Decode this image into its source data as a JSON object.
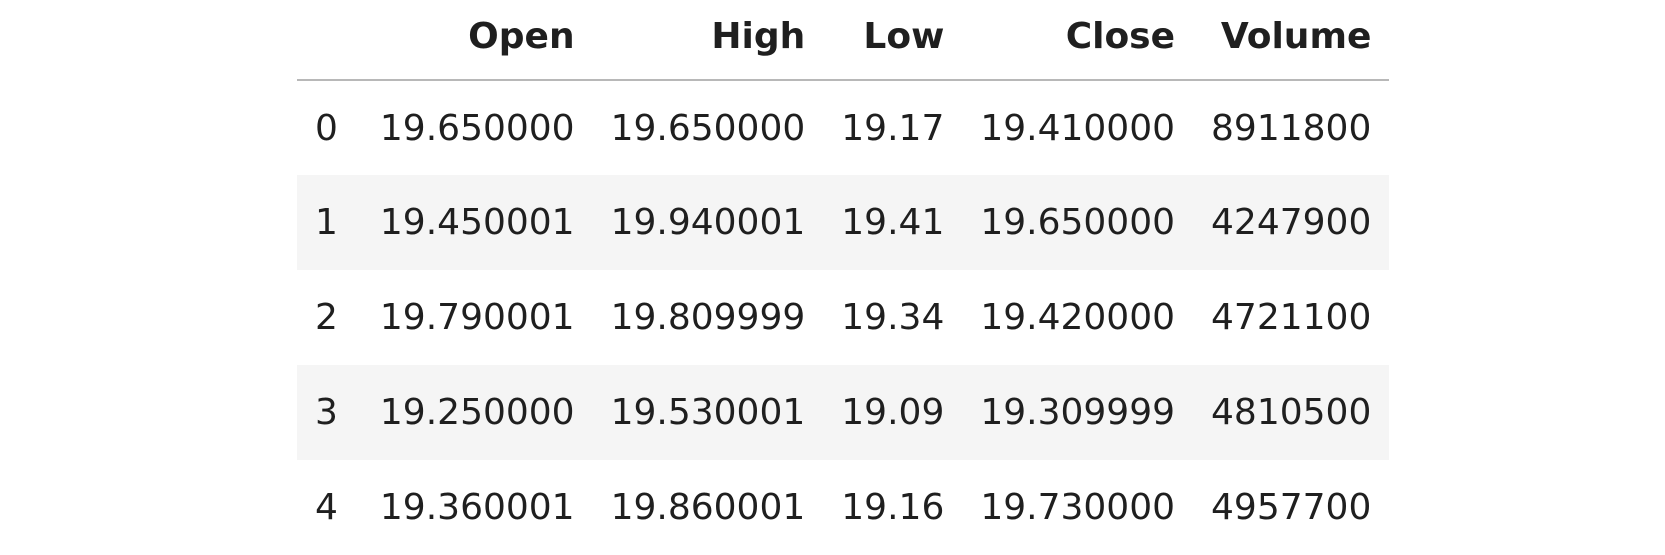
{
  "table": {
    "index_header": "",
    "columns": [
      "Open",
      "High",
      "Low",
      "Close",
      "Volume"
    ],
    "rows": [
      {
        "index": "0",
        "values": [
          "19.650000",
          "19.650000",
          "19.17",
          "19.410000",
          "8911800"
        ]
      },
      {
        "index": "1",
        "values": [
          "19.450001",
          "19.940001",
          "19.41",
          "19.650000",
          "4247900"
        ]
      },
      {
        "index": "2",
        "values": [
          "19.790001",
          "19.809999",
          "19.34",
          "19.420000",
          "4721100"
        ]
      },
      {
        "index": "3",
        "values": [
          "19.250000",
          "19.530001",
          "19.09",
          "19.309999",
          "4810500"
        ]
      },
      {
        "index": "4",
        "values": [
          "19.360001",
          "19.860001",
          "19.16",
          "19.730000",
          "4957700"
        ]
      }
    ]
  },
  "colors": {
    "text": "#1f1f1f",
    "stripe": "#f5f5f5",
    "header_rule": "#b8b8b8",
    "background": "#ffffff"
  }
}
